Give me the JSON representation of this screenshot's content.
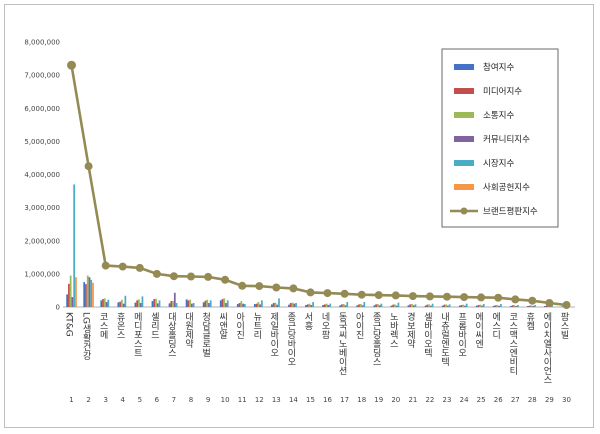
{
  "chart_data": {
    "type": "bar",
    "ylim": [
      0,
      8000000
    ],
    "yticks": [
      "0",
      "1,000,000",
      "2,000,000",
      "3,000,000",
      "4,000,000",
      "5,000,000",
      "6,000,000",
      "7,000,000",
      "8,000,000"
    ],
    "xnums": [
      "1",
      "2",
      "3",
      "4",
      "5",
      "6",
      "7",
      "8",
      "9",
      "10",
      "11",
      "12",
      "13",
      "14",
      "15",
      "16",
      "17",
      "18",
      "19",
      "20",
      "21",
      "22",
      "23",
      "24",
      "25",
      "26",
      "27",
      "28",
      "29",
      "30"
    ],
    "categories": [
      "KT&G",
      "LG생활건강",
      "코스메",
      "휴온스",
      "메디포스트",
      "셀리드",
      "대상홀딩스",
      "대원제약",
      "청담글로벌",
      "씨앤알",
      "아이진",
      "뉴트리",
      "제일바이오",
      "종근당바이오",
      "서흥",
      "네오팜",
      "동국씨노베이션",
      "아이진",
      "종근당홀딩스",
      "노바렉스",
      "경보제약",
      "셀바이오텍",
      "내츄럴엔도텍",
      "프롬바이오",
      "에이씨엔",
      "에스디",
      "코스맥스엔비티",
      "휴켐",
      "에이치엘사이언스",
      "팜스빌"
    ],
    "series": [
      {
        "name": "참여지수",
        "color": "#4472c4",
        "values": [
          380000,
          750000,
          200000,
          140000,
          130000,
          180000,
          110000,
          230000,
          140000,
          200000,
          90000,
          90000,
          80000,
          70000,
          60000,
          60000,
          50000,
          50000,
          50000,
          40000,
          50000,
          40000,
          40000,
          40000,
          40000,
          35000,
          30000,
          30000,
          30000,
          20000
        ]
      },
      {
        "name": "미디어지수",
        "color": "#c0504d",
        "values": [
          700000,
          690000,
          240000,
          160000,
          200000,
          240000,
          180000,
          200000,
          190000,
          240000,
          120000,
          100000,
          120000,
          120000,
          80000,
          80000,
          80000,
          80000,
          80000,
          70000,
          80000,
          70000,
          70000,
          60000,
          60000,
          50000,
          50000,
          40000,
          40000,
          30000
        ]
      },
      {
        "name": "소통지수",
        "color": "#9bbb59",
        "values": [
          950000,
          950000,
          260000,
          220000,
          230000,
          250000,
          180000,
          220000,
          220000,
          260000,
          180000,
          150000,
          130000,
          130000,
          100000,
          100000,
          90000,
          90000,
          90000,
          80000,
          90000,
          80000,
          80000,
          70000,
          70000,
          60000,
          60000,
          50000,
          50000,
          40000
        ]
      },
      {
        "name": "커뮤니티지수",
        "color": "#8064a2",
        "values": [
          300000,
          900000,
          150000,
          100000,
          120000,
          110000,
          430000,
          100000,
          120000,
          120000,
          100000,
          80000,
          70000,
          100000,
          60000,
          60000,
          50000,
          50000,
          50000,
          40000,
          50000,
          40000,
          40000,
          40000,
          40000,
          35000,
          30000,
          30000,
          30000,
          20000
        ]
      },
      {
        "name": "시장지수",
        "color": "#4bacc6",
        "values": [
          3700000,
          820000,
          220000,
          340000,
          320000,
          200000,
          120000,
          120000,
          200000,
          200000,
          90000,
          200000,
          260000,
          120000,
          150000,
          100000,
          150000,
          150000,
          100000,
          130000,
          80000,
          100000,
          80000,
          100000,
          90000,
          90000,
          60000,
          60000,
          60000,
          30000
        ]
      },
      {
        "name": "사회공헌지수",
        "color": "#f79646",
        "values": [
          900000,
          730000,
          0,
          0,
          0,
          0,
          0,
          0,
          0,
          0,
          0,
          0,
          0,
          0,
          0,
          0,
          0,
          0,
          0,
          0,
          0,
          0,
          0,
          0,
          0,
          0,
          0,
          0,
          0,
          0
        ]
      },
      {
        "name": "브랜드평판지수",
        "color": "#948a54",
        "type": "line",
        "values": [
          7300000,
          4250000,
          1250000,
          1220000,
          1180000,
          1000000,
          930000,
          920000,
          910000,
          820000,
          640000,
          630000,
          590000,
          560000,
          440000,
          420000,
          400000,
          370000,
          360000,
          350000,
          330000,
          320000,
          310000,
          300000,
          290000,
          280000,
          230000,
          190000,
          120000,
          60000
        ]
      }
    ]
  }
}
